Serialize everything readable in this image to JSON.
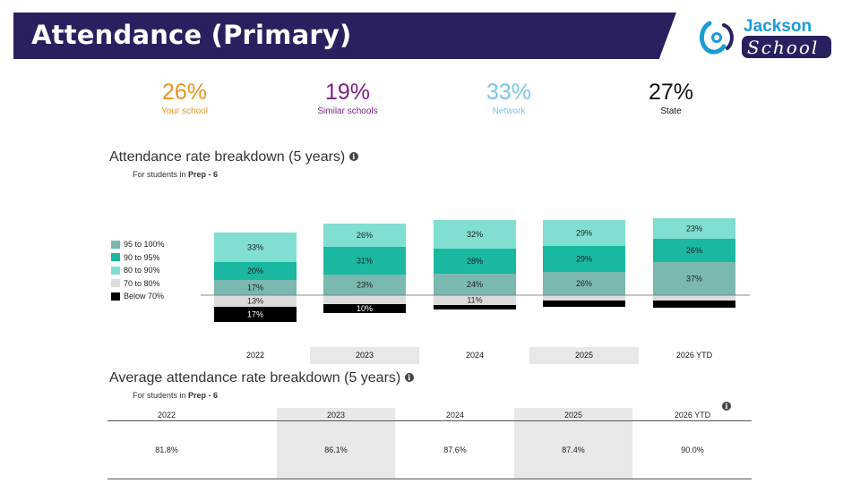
{
  "header": {
    "title": "Attendance (Primary)"
  },
  "logo": {
    "word1": "Jackson",
    "word2": "School"
  },
  "stats": [
    {
      "value": "26%",
      "label": "Your school",
      "color": "#e8951f"
    },
    {
      "value": "19%",
      "label": "Similar schools",
      "color": "#7d1f8a"
    },
    {
      "value": "33%",
      "label": "Network",
      "color": "#7cc4e4"
    },
    {
      "value": "27%",
      "label": "State",
      "color": "#111111"
    }
  ],
  "breakdown": {
    "title": "Attendance rate breakdown (5 years)",
    "subtitle_prefix": "For students in",
    "subtitle_bold": "Prep - 6",
    "info_icon": "info-icon"
  },
  "average": {
    "title": "Average attendance rate breakdown (5 years)",
    "subtitle_prefix": "For students in",
    "subtitle_bold": "Prep - 6",
    "info_icon": "info-icon",
    "columns": [
      "2022",
      "2023",
      "2024",
      "2025",
      "2026 YTD"
    ],
    "values": [
      "81.8%",
      "86.1%",
      "87.6%",
      "87.4%",
      "90.0%"
    ]
  },
  "chart_data": {
    "type": "bar",
    "stacked": "diverging",
    "categories": [
      "2022",
      "2023",
      "2024",
      "2025",
      "2026 YTD"
    ],
    "series": [
      {
        "name": "95 to 100%",
        "color": "#7ab8b0",
        "values": [
          17,
          23,
          24,
          26,
          37
        ],
        "labels": [
          "17%",
          "23%",
          "24%",
          "26%",
          "37%"
        ]
      },
      {
        "name": "90 to 95%",
        "color": "#1ab8a0",
        "values": [
          20,
          31,
          28,
          29,
          26
        ],
        "labels": [
          "20%",
          "31%",
          "28%",
          "29%",
          "26%"
        ]
      },
      {
        "name": "80 to 90%",
        "color": "#80dfd0",
        "values": [
          33,
          26,
          32,
          29,
          23
        ],
        "labels": [
          "33%",
          "26%",
          "32%",
          "29%",
          "23%"
        ]
      },
      {
        "name": "70 to 80%",
        "color": "#dcdcdc",
        "values": [
          13,
          10,
          11,
          6,
          6
        ],
        "labels": [
          "13%",
          "",
          "11%",
          "",
          ""
        ]
      },
      {
        "name": "Below 70%",
        "color": "#000000",
        "values": [
          17,
          10,
          5,
          7,
          8
        ],
        "labels": [
          "17%",
          "10%",
          "",
          "",
          ""
        ]
      }
    ],
    "negative_series": [
      "70 to 80%",
      "Below 70%"
    ],
    "legend_position": "left",
    "shaded_categories": [
      "2023",
      "2025"
    ]
  }
}
